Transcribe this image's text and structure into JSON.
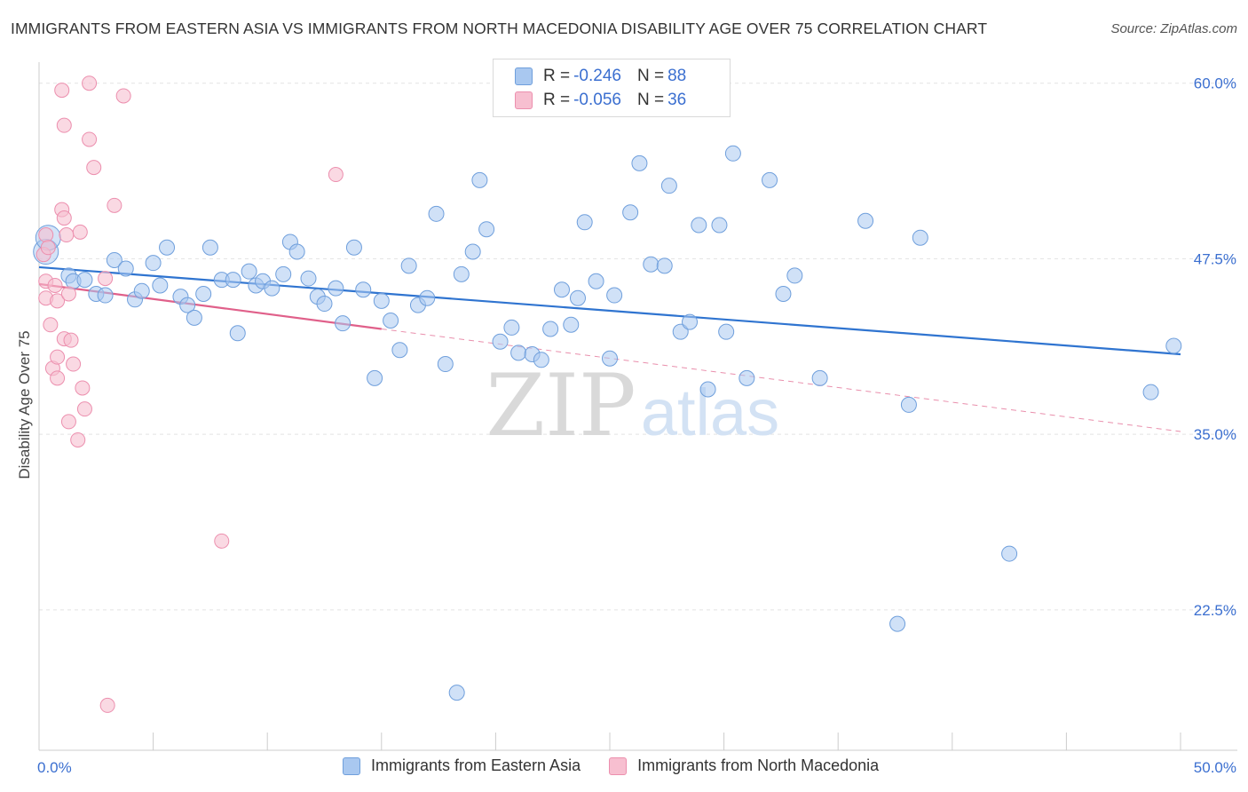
{
  "header": {
    "title": "IMMIGRANTS FROM EASTERN ASIA VS IMMIGRANTS FROM NORTH MACEDONIA DISABILITY AGE OVER 75 CORRELATION CHART",
    "source": "Source: ZipAtlas.com"
  },
  "watermark": {
    "zip": "ZIP",
    "atlas": "atlas"
  },
  "legend_top": {
    "r_label": "R =",
    "n_label": "N =",
    "rows": [
      {
        "r": "-0.246",
        "n": "88"
      },
      {
        "r": "-0.056",
        "n": "36"
      }
    ]
  },
  "legend_bottom": [
    {
      "label": "Immigrants from Eastern Asia"
    },
    {
      "label": "Immigrants from North Macedonia"
    }
  ],
  "colors": {
    "blue_fill": "#a9c8f0",
    "blue_stroke": "#6f9fdc",
    "blue_line": "#2f74d0",
    "pink_fill": "#f7bfd0",
    "pink_stroke": "#ec8fae",
    "pink_line": "#e0608a",
    "tick_label": "#3b6fd0",
    "grid": "#e3e3e3"
  },
  "chart_data": {
    "type": "scatter",
    "title": "IMMIGRANTS FROM EASTERN ASIA VS IMMIGRANTS FROM NORTH MACEDONIA DISABILITY AGE OVER 75 CORRELATION CHART",
    "xlabel": "",
    "ylabel": "Disability Age Over 75",
    "xlim": [
      0,
      50
    ],
    "ylim": [
      12.5,
      61.5
    ],
    "x_tick_labels": [
      "0.0%",
      "50.0%"
    ],
    "y_ticks": [
      22.5,
      35.0,
      47.5,
      60.0
    ],
    "y_tick_labels": [
      "22.5%",
      "35.0%",
      "47.5%",
      "60.0%"
    ],
    "grid": true,
    "legend_position": "bottom",
    "series": [
      {
        "name": "Immigrants from Eastern Asia",
        "r": -0.246,
        "n": 88,
        "trend": {
          "x": [
            0.0,
            50.0
          ],
          "y": [
            46.9,
            40.7
          ],
          "dashed": false
        },
        "points": [
          [
            0.3,
            48.0
          ],
          [
            0.4,
            49.0
          ],
          [
            1.3,
            46.3
          ],
          [
            1.5,
            45.9
          ],
          [
            2.0,
            46.0
          ],
          [
            2.5,
            45.0
          ],
          [
            2.9,
            44.9
          ],
          [
            3.3,
            47.4
          ],
          [
            3.8,
            46.8
          ],
          [
            4.2,
            44.6
          ],
          [
            4.5,
            45.2
          ],
          [
            5.0,
            47.2
          ],
          [
            5.3,
            45.6
          ],
          [
            5.6,
            48.3
          ],
          [
            6.2,
            44.8
          ],
          [
            6.5,
            44.2
          ],
          [
            6.8,
            43.3
          ],
          [
            7.2,
            45.0
          ],
          [
            7.5,
            48.3
          ],
          [
            8.0,
            46.0
          ],
          [
            8.5,
            46.0
          ],
          [
            8.7,
            42.2
          ],
          [
            9.2,
            46.6
          ],
          [
            9.5,
            45.6
          ],
          [
            9.8,
            45.9
          ],
          [
            10.2,
            45.4
          ],
          [
            10.7,
            46.4
          ],
          [
            11.0,
            48.7
          ],
          [
            11.3,
            48.0
          ],
          [
            11.8,
            46.1
          ],
          [
            12.2,
            44.8
          ],
          [
            12.5,
            44.3
          ],
          [
            13.0,
            45.4
          ],
          [
            13.3,
            42.9
          ],
          [
            13.8,
            48.3
          ],
          [
            14.2,
            45.3
          ],
          [
            14.7,
            39.0
          ],
          [
            15.0,
            44.5
          ],
          [
            15.4,
            43.1
          ],
          [
            15.8,
            41.0
          ],
          [
            16.2,
            47.0
          ],
          [
            16.6,
            44.2
          ],
          [
            17.0,
            44.7
          ],
          [
            17.4,
            50.7
          ],
          [
            17.8,
            40.0
          ],
          [
            18.3,
            16.6
          ],
          [
            18.5,
            46.4
          ],
          [
            19.0,
            48.0
          ],
          [
            19.3,
            53.1
          ],
          [
            19.6,
            49.6
          ],
          [
            20.2,
            41.6
          ],
          [
            20.7,
            42.6
          ],
          [
            21.0,
            40.8
          ],
          [
            21.6,
            40.7
          ],
          [
            22.0,
            40.3
          ],
          [
            22.4,
            42.5
          ],
          [
            22.9,
            45.3
          ],
          [
            23.3,
            42.8
          ],
          [
            23.6,
            44.7
          ],
          [
            23.9,
            50.1
          ],
          [
            24.4,
            45.9
          ],
          [
            25.0,
            40.4
          ],
          [
            25.2,
            44.9
          ],
          [
            25.9,
            50.8
          ],
          [
            26.3,
            54.3
          ],
          [
            26.8,
            47.1
          ],
          [
            27.4,
            47.0
          ],
          [
            27.6,
            52.7
          ],
          [
            28.1,
            42.3
          ],
          [
            28.5,
            43.0
          ],
          [
            28.9,
            49.9
          ],
          [
            29.3,
            38.2
          ],
          [
            29.8,
            49.9
          ],
          [
            30.1,
            42.3
          ],
          [
            30.4,
            55.0
          ],
          [
            31.0,
            39.0
          ],
          [
            32.0,
            53.1
          ],
          [
            32.6,
            45.0
          ],
          [
            33.1,
            46.3
          ],
          [
            34.2,
            39.0
          ],
          [
            36.2,
            50.2
          ],
          [
            37.6,
            21.5
          ],
          [
            38.1,
            37.1
          ],
          [
            38.6,
            49.0
          ],
          [
            42.5,
            26.5
          ],
          [
            48.7,
            38.0
          ],
          [
            49.7,
            41.3
          ]
        ]
      },
      {
        "name": "Immigrants from North Macedonia",
        "r": -0.056,
        "n": 36,
        "trend": {
          "x": [
            0.0,
            15.0
          ],
          "y": [
            45.7,
            42.5
          ],
          "dashed_extension_to": [
            50.0,
            35.2
          ]
        },
        "points": [
          [
            0.2,
            47.8
          ],
          [
            0.3,
            49.2
          ],
          [
            0.3,
            45.9
          ],
          [
            0.3,
            44.7
          ],
          [
            0.4,
            48.3
          ],
          [
            0.5,
            42.8
          ],
          [
            0.6,
            39.7
          ],
          [
            0.7,
            45.6
          ],
          [
            0.8,
            44.5
          ],
          [
            0.8,
            40.5
          ],
          [
            0.8,
            39.0
          ],
          [
            1.0,
            59.5
          ],
          [
            1.0,
            51.0
          ],
          [
            1.1,
            50.4
          ],
          [
            1.1,
            41.8
          ],
          [
            1.1,
            57.0
          ],
          [
            1.2,
            49.2
          ],
          [
            1.3,
            45.0
          ],
          [
            1.3,
            35.9
          ],
          [
            1.4,
            41.7
          ],
          [
            1.5,
            40.0
          ],
          [
            1.7,
            34.6
          ],
          [
            1.8,
            49.4
          ],
          [
            1.9,
            38.3
          ],
          [
            2.0,
            36.8
          ],
          [
            2.2,
            56.0
          ],
          [
            2.2,
            60.0
          ],
          [
            2.4,
            54.0
          ],
          [
            2.9,
            46.1
          ],
          [
            3.0,
            15.7
          ],
          [
            3.3,
            51.3
          ],
          [
            3.7,
            59.1
          ],
          [
            8.0,
            27.4
          ],
          [
            13.0,
            53.5
          ]
        ]
      }
    ]
  }
}
